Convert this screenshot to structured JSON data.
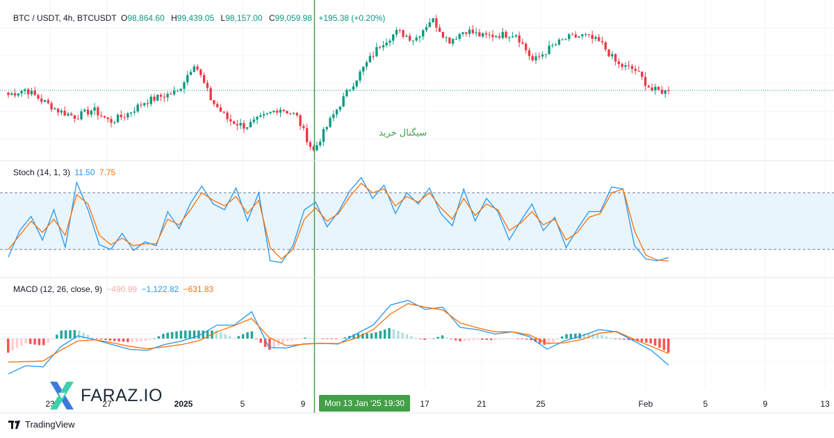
{
  "price_legend": {
    "symbol": "BTC / USDT, 4h, BTCUSDT",
    "open_label": "O",
    "open": "98,864.60",
    "high_label": "H",
    "high": "99,439.05",
    "low_label": "L",
    "low": "98,157.00",
    "close_label": "C",
    "close": "99,059.98",
    "change": "+195.38 (+0.20%)"
  },
  "stoch_legend": {
    "name": "Stoch (14, 1, 3)",
    "k": "11.50",
    "d": "7.75"
  },
  "macd_legend": {
    "name": "MACD (12, 26, close, 9)",
    "hist": "−490.99",
    "macd": "−1,122.82",
    "signal": "−631.83"
  },
  "annotation": {
    "signal_text": "سیگنال خرید",
    "crosshair_time": "Mon 13 Jan '25   19:30"
  },
  "logo": {
    "text": "FARAZ.IO"
  },
  "branding": {
    "text": "TradingView"
  },
  "colors": {
    "up": "#089981",
    "down": "#f23645",
    "k_line": "#2196f3",
    "d_line": "#ff6d00",
    "crosshair": "#43a047",
    "band_fill": "#e3f2fd"
  },
  "chart_data": [
    {
      "type": "candlestick",
      "title": "BTC / USDT, 4h, BTCUSDT",
      "x": [
        "23",
        "27",
        "2025",
        "5",
        "9",
        "13",
        "17",
        "21",
        "25",
        "Feb",
        "5",
        "9",
        "13"
      ],
      "close_path": [
        98500,
        99200,
        97800,
        96500,
        95800,
        96700,
        95200,
        96100,
        97600,
        98300,
        98900,
        102500,
        97800,
        95400,
        94600,
        95700,
        96900,
        96000,
        91500,
        95300,
        98800,
        101900,
        104800,
        106300,
        105300,
        107900,
        105100,
        106500,
        105700,
        105900,
        106000,
        102600,
        104300,
        105500,
        105800,
        104900,
        102200,
        101600,
        99100,
        98864
      ],
      "last_price": 99059.98,
      "signal_index": 18
    },
    {
      "type": "line",
      "title": "Stoch (14, 1, 3)",
      "hlines": [
        80,
        20
      ],
      "series": [
        {
          "name": "%K",
          "values": [
            12,
            40,
            55,
            30,
            62,
            22,
            91,
            62,
            25,
            20,
            37,
            19,
            28,
            24,
            60,
            42,
            69,
            87,
            68,
            62,
            85,
            50,
            80,
            8,
            6,
            24,
            62,
            70,
            44,
            60,
            82,
            96,
            74,
            88,
            58,
            80,
            68,
            85,
            58,
            45,
            84,
            50,
            74,
            60,
            30,
            50,
            68,
            40,
            54,
            22,
            42,
            60,
            60,
            86,
            84,
            24,
            10,
            8,
            11.5
          ]
        },
        {
          "name": "%D",
          "values": [
            20,
            35,
            50,
            38,
            52,
            35,
            78,
            68,
            35,
            25,
            32,
            24,
            26,
            26,
            52,
            46,
            62,
            80,
            72,
            66,
            76,
            58,
            72,
            22,
            10,
            20,
            52,
            64,
            50,
            58,
            76,
            90,
            80,
            84,
            66,
            76,
            70,
            80,
            64,
            52,
            74,
            56,
            68,
            62,
            40,
            48,
            60,
            46,
            52,
            30,
            38,
            54,
            58,
            80,
            84,
            40,
            14,
            9,
            7.75
          ]
        }
      ]
    },
    {
      "type": "line",
      "title": "MACD (12, 26, close, 9)",
      "series": [
        {
          "name": "MACD",
          "values": [
            -1500,
            -1150,
            -1200,
            -350,
            60,
            -50,
            -260,
            -460,
            -500,
            -250,
            -100,
            70,
            300,
            300,
            600,
            -380,
            -400,
            -220,
            -200,
            -230,
            100,
            300,
            750,
            850,
            650,
            700,
            250,
            200,
            100,
            150,
            40,
            -450,
            -100,
            60,
            200,
            150,
            -100,
            -500,
            -1122.82
          ]
        },
        {
          "name": "Signal",
          "values": [
            -1000,
            -980,
            -950,
            -500,
            -100,
            -50,
            -180,
            -330,
            -430,
            -350,
            -250,
            -80,
            150,
            290,
            450,
            30,
            -300,
            -240,
            -200,
            -210,
            10,
            200,
            550,
            780,
            700,
            640,
            350,
            240,
            150,
            150,
            80,
            -200,
            -180,
            -40,
            120,
            160,
            -30,
            -330,
            -631.83
          ]
        }
      ]
    }
  ]
}
